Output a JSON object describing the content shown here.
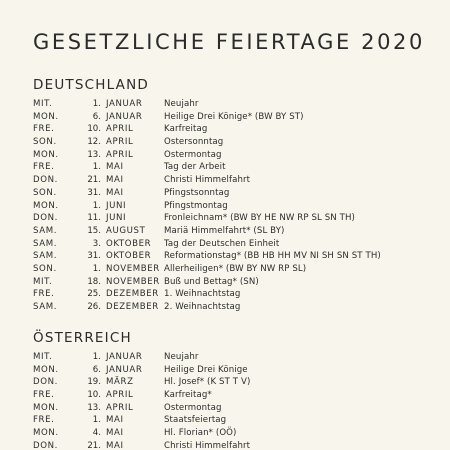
{
  "title": "GESETZLICHE FEIERTAGE 2020",
  "sections": [
    {
      "title": "DEUTSCHLAND",
      "rows": [
        {
          "weekday": "MIT.",
          "day": "1.",
          "month": "JANUAR",
          "name": "Neujahr"
        },
        {
          "weekday": "MON.",
          "day": "6.",
          "month": "JANUAR",
          "name": "Heilige Drei Könige* (BW BY ST)"
        },
        {
          "weekday": "FRE.",
          "day": "10.",
          "month": "APRIL",
          "name": "Karfreitag"
        },
        {
          "weekday": "SON.",
          "day": "12.",
          "month": "APRIL",
          "name": "Ostersonntag"
        },
        {
          "weekday": "MON.",
          "day": "13.",
          "month": "APRIL",
          "name": "Ostermontag"
        },
        {
          "weekday": "FRE.",
          "day": "1.",
          "month": "MAI",
          "name": "Tag der Arbeit"
        },
        {
          "weekday": "DON.",
          "day": "21.",
          "month": "MAI",
          "name": "Christi Himmelfahrt"
        },
        {
          "weekday": "SON.",
          "day": "31.",
          "month": "MAI",
          "name": "Pfingstsonntag"
        },
        {
          "weekday": "MON.",
          "day": "1.",
          "month": "JUNI",
          "name": "Pfingstmontag"
        },
        {
          "weekday": "DON.",
          "day": "11.",
          "month": "JUNI",
          "name": "Fronleichnam* (BW BY HE NW RP SL SN TH)"
        },
        {
          "weekday": "SAM.",
          "day": "15.",
          "month": "AUGUST",
          "name": "Mariä Himmelfahrt* (SL BY)"
        },
        {
          "weekday": "SAM.",
          "day": "3.",
          "month": "OKTOBER",
          "name": "Tag der Deutschen Einheit"
        },
        {
          "weekday": "SAM.",
          "day": "31.",
          "month": "OKTOBER",
          "name": "Reformationstag* (BB HB HH MV NI SH SN ST TH)"
        },
        {
          "weekday": "SON.",
          "day": "1.",
          "month": "NOVEMBER",
          "name": "Allerheiligen* (BW BY NW RP SL)"
        },
        {
          "weekday": "MIT.",
          "day": "18.",
          "month": "NOVEMBER",
          "name": "Buß und Bettag* (SN)"
        },
        {
          "weekday": "FRE.",
          "day": "25.",
          "month": "DEZEMBER",
          "name": "1. Weihnachtstag"
        },
        {
          "weekday": "SAM.",
          "day": "26.",
          "month": "DEZEMBER",
          "name": "2. Weihnachtstag"
        }
      ]
    },
    {
      "title": "ÖSTERREICH",
      "rows": [
        {
          "weekday": "MIT.",
          "day": "1.",
          "month": "JANUAR",
          "name": "Neujahr"
        },
        {
          "weekday": "MON.",
          "day": "6.",
          "month": "JANUAR",
          "name": "Heilige Drei Könige"
        },
        {
          "weekday": "DON.",
          "day": "19.",
          "month": "MÄRZ",
          "name": "Hl. Josef* (K ST T V)"
        },
        {
          "weekday": "FRE.",
          "day": "10.",
          "month": "APRIL",
          "name": "Karfreitag*"
        },
        {
          "weekday": "MON.",
          "day": "13.",
          "month": "APRIL",
          "name": "Ostermontag"
        },
        {
          "weekday": "FRE.",
          "day": "1.",
          "month": "MAI",
          "name": "Staatsfeiertag"
        },
        {
          "weekday": "MON.",
          "day": "4.",
          "month": "MAI",
          "name": "Hl. Florian* (OÖ)"
        },
        {
          "weekday": "DON.",
          "day": "21.",
          "month": "MAI",
          "name": "Christi Himmelfahrt"
        }
      ]
    }
  ]
}
